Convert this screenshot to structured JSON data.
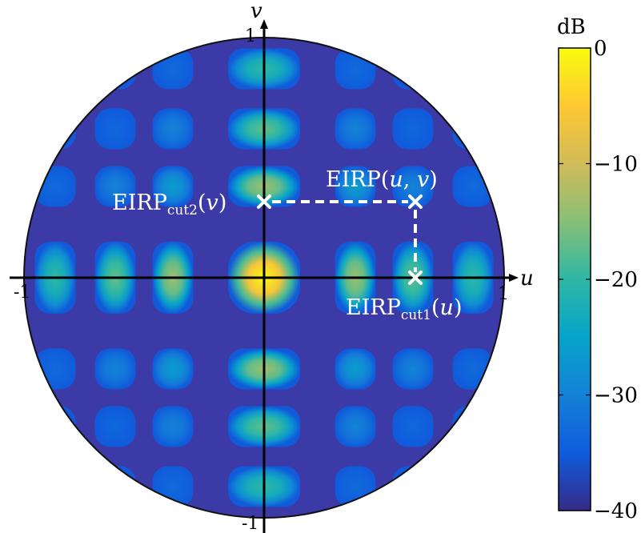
{
  "chart_data": {
    "type": "heatmap",
    "title": "",
    "xlabel": "u",
    "ylabel": "v",
    "xlim": [
      -1,
      1
    ],
    "ylim": [
      -1,
      1
    ],
    "x_ticks": [
      {
        "value": -1,
        "label": "-1"
      },
      {
        "value": 1,
        "label": "1"
      }
    ],
    "y_ticks": [
      {
        "value": 1,
        "label": "1"
      },
      {
        "value": -1,
        "label": "-1"
      }
    ],
    "colorbar": {
      "label": "dB",
      "min": -40,
      "max": 0,
      "ticks": [
        {
          "value": 0,
          "label": "0"
        },
        {
          "value": -10,
          "label": "−10"
        },
        {
          "value": -20,
          "label": "−20"
        },
        {
          "value": -30,
          "label": "−30"
        },
        {
          "value": -40,
          "label": "−40"
        }
      ],
      "colormap": "parula",
      "colors": [
        "#352a87",
        "#0f5cdd",
        "#1481d6",
        "#06a4ca",
        "#2eb7a4",
        "#87bf77",
        "#d1bb59",
        "#fec832",
        "#f9fb0e"
      ]
    },
    "pattern": {
      "domain": "unit-circle",
      "main_lobe_db": 0,
      "sidelobe_positions": [
        -0.87,
        -0.62,
        -0.38,
        0,
        0.38,
        0.62,
        0.87
      ]
    },
    "points": [
      {
        "name": "EIRP(u,v)",
        "u": 0.62,
        "v": 0.35
      },
      {
        "name": "EIRP_cut2(v)",
        "u": 0.0,
        "v": 0.35
      },
      {
        "name": "EIRP_cut1(u)",
        "u": 0.62,
        "v": 0.0
      }
    ],
    "annotations": {
      "eirp_uv": {
        "main": "EIRP(",
        "u": "u",
        "comma": ", ",
        "v": "v",
        "close": ")"
      },
      "eirp_cut2": {
        "main": "EIRP",
        "sub": "cut2",
        "open": "(",
        "arg": "v",
        "close": ")"
      },
      "eirp_cut1": {
        "main": "EIRP",
        "sub": "cut1",
        "open": "(",
        "arg": "u",
        "close": ")"
      }
    }
  }
}
